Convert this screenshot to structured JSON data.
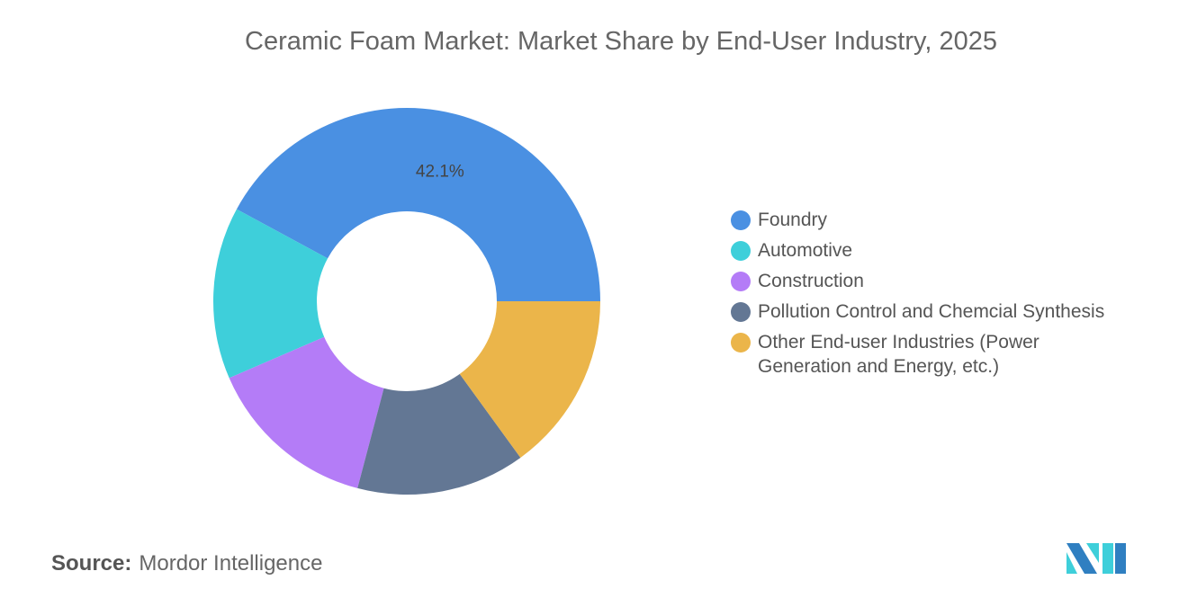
{
  "title": "Ceramic Foam Market: Market Share by End-User Industry, 2025",
  "chart_data": {
    "type": "pie",
    "donut": true,
    "title": "Ceramic Foam Market: Market Share by End-User Industry, 2025",
    "categories": [
      "Foundry",
      "Automotive",
      "Construction",
      "Pollution Control and Chemcial Synthesis",
      "Other End-user Industries (Power Generation and Energy, etc.)"
    ],
    "values": [
      42.1,
      14.4,
      14.4,
      14.1,
      15.0
    ],
    "colors": [
      "#4a90e2",
      "#3ecfda",
      "#b47cf7",
      "#637794",
      "#ebb54a"
    ],
    "data_labels": [
      "42.1%",
      "",
      "",
      "",
      ""
    ],
    "legend_position": "right"
  },
  "source": {
    "label": "Source:",
    "value": "Mordor Intelligence"
  }
}
